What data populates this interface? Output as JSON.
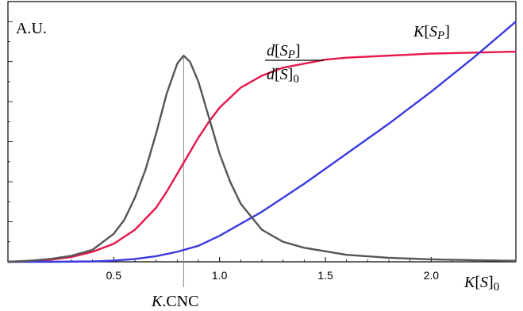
{
  "chart_data": {
    "type": "line",
    "xlim": [
      0,
      2.4
    ],
    "ylim": [
      0,
      1.3
    ],
    "x_ticks": [
      {
        "value": 0.5,
        "label": "0.5"
      },
      {
        "value": 1.0,
        "label": "1.0"
      },
      {
        "value": 1.5,
        "label": "1.5"
      },
      {
        "value": 2.0,
        "label": "2.0"
      }
    ],
    "y_axis_label": "A.U.",
    "x_axis_label": {
      "main": "K[S]",
      "subscript": "0"
    },
    "cnc_marker": {
      "x": 0.83,
      "label": "K.CNC"
    },
    "grid": false,
    "series": [
      {
        "name": "d[SP]/d[S]0",
        "label_parts": {
          "numerator": "d[S",
          "numerator_sub": "P",
          "numerator_end": "]",
          "denominator": "d[S]",
          "denominator_sub": "0"
        },
        "color": "#e8164b",
        "x": [
          0,
          0.1,
          0.2,
          0.3,
          0.4,
          0.5,
          0.6,
          0.7,
          0.75,
          0.8,
          0.85,
          0.9,
          0.95,
          1.0,
          1.1,
          1.2,
          1.3,
          1.4,
          1.5,
          1.6,
          1.8,
          2.0,
          2.2,
          2.4
        ],
        "y": [
          0.0,
          0.003,
          0.01,
          0.024,
          0.05,
          0.09,
          0.16,
          0.27,
          0.35,
          0.44,
          0.53,
          0.62,
          0.7,
          0.77,
          0.87,
          0.93,
          0.97,
          0.99,
          1.01,
          1.02,
          1.03,
          1.04,
          1.045,
          1.05
        ]
      },
      {
        "name": "K[SP]",
        "label_parts": {
          "main": "K[S",
          "sub": "P",
          "end": "]"
        },
        "color": "#3a3adf",
        "x": [
          0,
          0.2,
          0.4,
          0.5,
          0.6,
          0.7,
          0.8,
          0.9,
          1.0,
          1.1,
          1.2,
          1.4,
          1.6,
          1.8,
          2.0,
          2.2,
          2.4
        ],
        "y": [
          0.0,
          0.0,
          0.002,
          0.006,
          0.014,
          0.028,
          0.05,
          0.08,
          0.13,
          0.19,
          0.25,
          0.39,
          0.54,
          0.69,
          0.85,
          1.02,
          1.2
        ]
      },
      {
        "name": "",
        "color": "#555555",
        "x": [
          0,
          0.1,
          0.2,
          0.3,
          0.4,
          0.5,
          0.55,
          0.6,
          0.65,
          0.7,
          0.75,
          0.8,
          0.83,
          0.86,
          0.9,
          0.95,
          1.0,
          1.05,
          1.1,
          1.2,
          1.3,
          1.4,
          1.6,
          1.8,
          2.0,
          2.2,
          2.4
        ],
        "y": [
          0.0,
          0.005,
          0.014,
          0.03,
          0.06,
          0.14,
          0.21,
          0.32,
          0.46,
          0.64,
          0.84,
          0.99,
          1.03,
          1.0,
          0.9,
          0.72,
          0.54,
          0.4,
          0.29,
          0.16,
          0.1,
          0.07,
          0.035,
          0.02,
          0.012,
          0.008,
          0.005
        ]
      }
    ]
  }
}
